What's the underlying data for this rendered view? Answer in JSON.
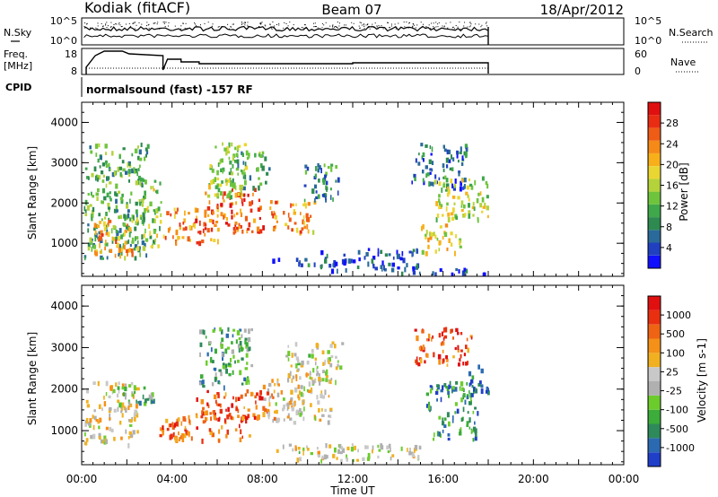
{
  "header": {
    "station": "Kodiak (fitACF)",
    "beam": "Beam 07",
    "date": "18/Apr/2012"
  },
  "noise_panel": {
    "left_label": "N.Sky",
    "right_label": "N.Search",
    "tick_top": "10^5",
    "tick_bottom": "10^0"
  },
  "freq_panel": {
    "left_label_1": "Freq.",
    "left_label_2": "[MHz]",
    "right_label": "Nave",
    "ticks_left": [
      "18",
      "8"
    ],
    "ticks_right": [
      "60",
      "0"
    ]
  },
  "cpid": {
    "label": "CPID",
    "text": "normalsound (fast) -157 RF"
  },
  "x_axis": {
    "label": "Time UT",
    "ticks": [
      "00:00",
      "04:00",
      "08:00",
      "12:00",
      "16:00",
      "20:00",
      "00:00"
    ]
  },
  "chart_data": [
    {
      "type": "heatmap",
      "quantity": "Power",
      "ylabel": "Slant Range [km]",
      "colorbar_label": "Power [dB]",
      "y_ticks": [
        1000,
        2000,
        3000,
        4000
      ],
      "ylim": [
        180,
        4500
      ],
      "xlim_hours": [
        0,
        24
      ],
      "data_end_hour": 18,
      "colorbar_ticks": [
        4,
        8,
        12,
        16,
        20,
        24,
        28
      ],
      "colorbar_colors": [
        "#1010ff",
        "#2040c0",
        "#2a6a9a",
        "#2e8a50",
        "#3fa84a",
        "#6ec43c",
        "#b4d23a",
        "#ead632",
        "#f8b01a",
        "#f58a18",
        "#ee5c16",
        "#e82d14",
        "#e01010"
      ],
      "regions": [
        {
          "start": 0.1,
          "end": 2.9,
          "range": [
            650,
            3500
          ],
          "level": 0.35
        },
        {
          "start": 0.5,
          "end": 2.4,
          "range": [
            700,
            1600
          ],
          "level": 0.7
        },
        {
          "start": 2.4,
          "end": 3.5,
          "range": [
            900,
            2600
          ],
          "level": 0.45
        },
        {
          "start": 3.6,
          "end": 6.0,
          "range": [
            1000,
            1900
          ],
          "level": 0.75
        },
        {
          "start": 5.4,
          "end": 8.0,
          "range": [
            1300,
            2400
          ],
          "level": 0.82
        },
        {
          "start": 5.5,
          "end": 7.3,
          "range": [
            2200,
            3550
          ],
          "level": 0.45
        },
        {
          "start": 6.5,
          "end": 8.3,
          "range": [
            2400,
            3300
          ],
          "level": 0.35
        },
        {
          "start": 8.3,
          "end": 10.5,
          "range": [
            1300,
            2100
          ],
          "level": 0.7
        },
        {
          "start": 9.8,
          "end": 11.5,
          "range": [
            2100,
            3000
          ],
          "level": 0.25
        },
        {
          "start": 8.4,
          "end": 10.5,
          "range": [
            500,
            650
          ],
          "level": 0.15
        },
        {
          "start": 10.5,
          "end": 15.0,
          "range": [
            350,
            900
          ],
          "level": 0.12
        },
        {
          "start": 14.0,
          "end": 18.0,
          "range": [
            250,
            400
          ],
          "level": 0.1
        },
        {
          "start": 14.6,
          "end": 17.0,
          "range": [
            2400,
            3500
          ],
          "level": 0.2
        },
        {
          "start": 15.6,
          "end": 18.0,
          "range": [
            1600,
            2700
          ],
          "level": 0.5
        },
        {
          "start": 15.0,
          "end": 16.8,
          "range": [
            800,
            1500
          ],
          "level": 0.55
        }
      ]
    },
    {
      "type": "heatmap",
      "quantity": "Velocity",
      "ylabel": "Slant Range [km]",
      "colorbar_label": "Velocity [m s-1]",
      "y_ticks": [
        1000,
        2000,
        3000,
        4000
      ],
      "ylim": [
        180,
        4500
      ],
      "xlim_hours": [
        0,
        24
      ],
      "data_end_hour": 18,
      "colorbar_ticks": [
        "1000",
        "500",
        "100",
        "25",
        "-25",
        "-100",
        "-500",
        "-1000"
      ],
      "colorbar_colors": [
        "#1f3fc8",
        "#2b6ab0",
        "#2e8a5a",
        "#3cac3a",
        "#6ccc2c",
        "#b0b0b0",
        "#c8c8c8",
        "#f0b020",
        "#f59018",
        "#ee6414",
        "#e83010",
        "#e01010"
      ],
      "regions": [
        {
          "start": 0.1,
          "end": 2.5,
          "range": [
            700,
            2200
          ],
          "level": 0.55
        },
        {
          "start": 1.5,
          "end": 3.2,
          "range": [
            1500,
            2100
          ],
          "level": 0.3
        },
        {
          "start": 3.4,
          "end": 7.4,
          "range": [
            800,
            1500
          ],
          "level": 0.78
        },
        {
          "start": 5.0,
          "end": 8.5,
          "range": [
            1300,
            2000
          ],
          "level": 0.82
        },
        {
          "start": 5.2,
          "end": 7.5,
          "range": [
            2000,
            3500
          ],
          "level": 0.3
        },
        {
          "start": 8.0,
          "end": 11.0,
          "range": [
            1200,
            2400
          ],
          "level": 0.55
        },
        {
          "start": 9.0,
          "end": 11.5,
          "range": [
            2200,
            3200
          ],
          "level": 0.5
        },
        {
          "start": 8.3,
          "end": 15.0,
          "range": [
            300,
            700
          ],
          "level": 0.5
        },
        {
          "start": 14.7,
          "end": 17.3,
          "range": [
            2600,
            3500
          ],
          "level": 0.82
        },
        {
          "start": 15.2,
          "end": 17.5,
          "range": [
            800,
            2200
          ],
          "level": 0.22
        },
        {
          "start": 17.0,
          "end": 18.0,
          "range": [
            1900,
            2600
          ],
          "level": 0.1
        }
      ]
    }
  ]
}
